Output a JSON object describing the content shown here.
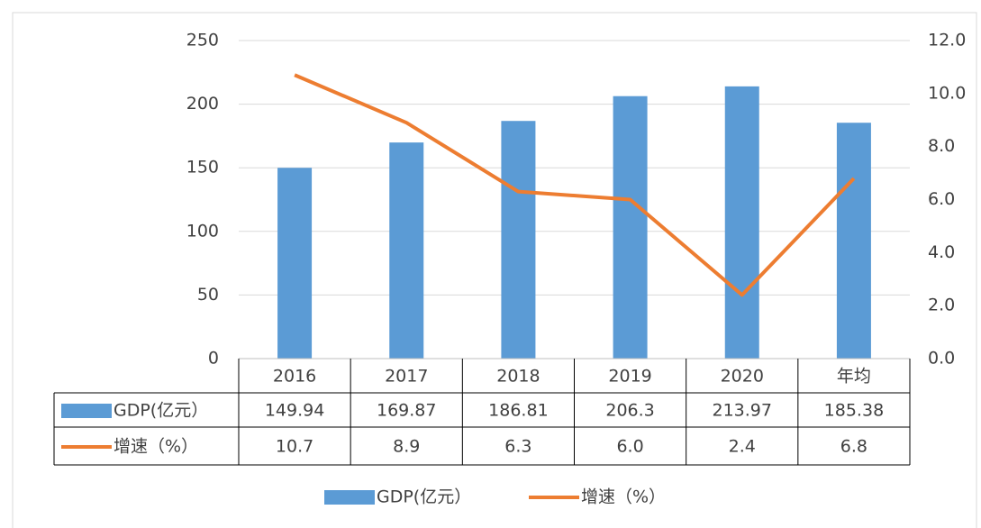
{
  "chart_data": {
    "type": "bar-line",
    "categories": [
      "2016",
      "2017",
      "2018",
      "2019",
      "2020",
      "年均"
    ],
    "series": [
      {
        "name": "GDP(亿元）",
        "color": "#5b9bd5",
        "type": "bar",
        "values": [
          149.94,
          169.87,
          186.81,
          206.3,
          213.97,
          185.38
        ]
      },
      {
        "name": "增速（%）",
        "color": "#ed7d31",
        "type": "line",
        "axis": "y2",
        "values": [
          10.7,
          8.9,
          6.3,
          6.0,
          2.4,
          6.8
        ],
        "value_labels": [
          "10.7",
          "8.9",
          "6.3",
          "6.0",
          "2.4",
          "6.8"
        ]
      }
    ],
    "ylim": [
      0,
      250
    ],
    "yticks": [
      0,
      50,
      100,
      150,
      200,
      250
    ],
    "y2lim": [
      0,
      12
    ],
    "y2ticks": [
      {
        "value": 0,
        "label": "0.0"
      },
      {
        "value": 2,
        "label": "2.0"
      },
      {
        "value": 4,
        "label": "4.0"
      },
      {
        "value": 6,
        "label": "6.0"
      },
      {
        "value": 8,
        "label": "8.0"
      },
      {
        "value": 10,
        "label": "10.0"
      },
      {
        "value": 12,
        "label": "12.0"
      }
    ],
    "grid": true,
    "legend": "bottom",
    "data_table": true
  }
}
